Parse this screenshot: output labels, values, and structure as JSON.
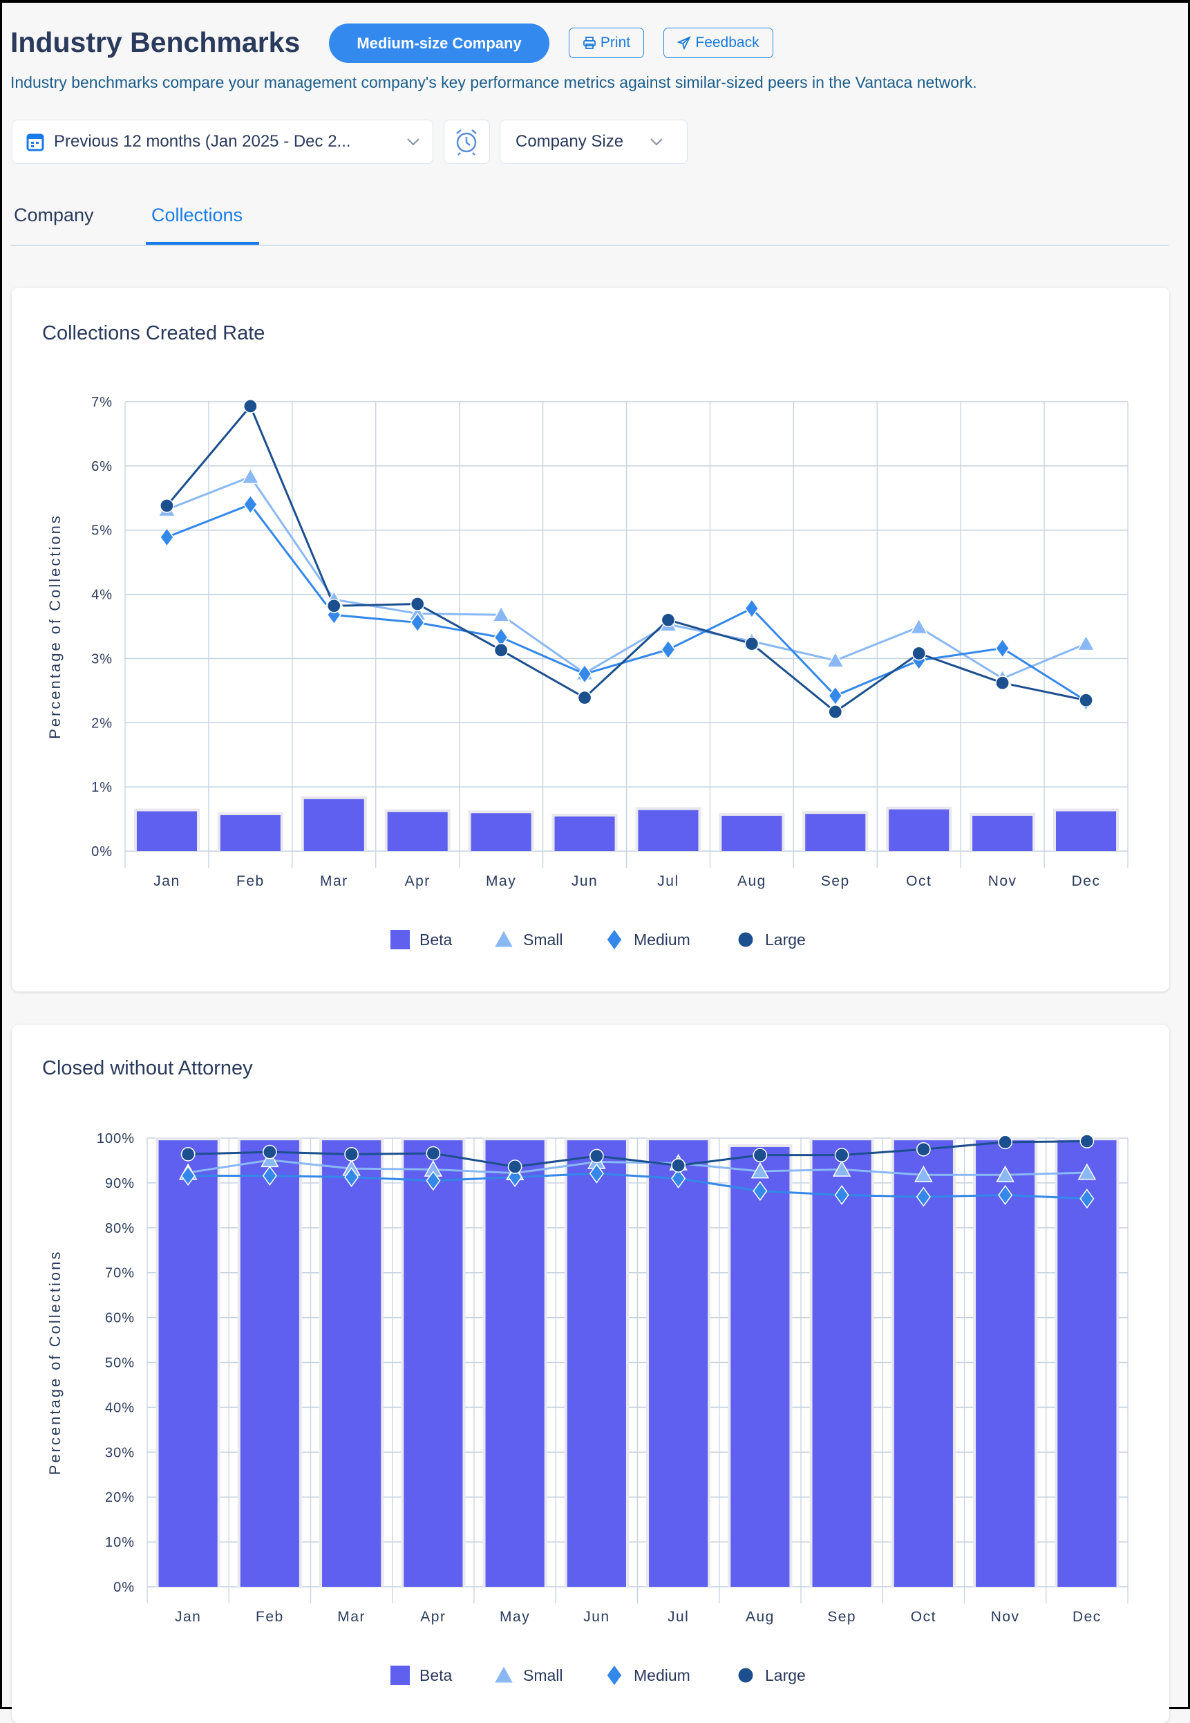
{
  "header": {
    "title": "Industry Benchmarks",
    "badge": "Medium-size Company",
    "print_label": "Print",
    "feedback_label": "Feedback",
    "subtitle": "Industry benchmarks compare your management company's key performance metrics against similar-sized peers in the Vantaca network."
  },
  "filters": {
    "date_range": "Previous 12 months (Jan 2025 - Dec 2...",
    "company_size": "Company Size"
  },
  "tabs": [
    {
      "label": "Company",
      "active": false
    },
    {
      "label": "Collections",
      "active": true
    }
  ],
  "colors": {
    "accent": "#3389ee",
    "beta": "#5f60ef",
    "small": "#8ab8f5",
    "medium": "#3388ea",
    "large": "#1c4f8e"
  },
  "chart_data": [
    {
      "type": "bar+line",
      "title": "Collections Created Rate",
      "ylabel": "Percentage of Collections",
      "ylim": [
        0,
        7
      ],
      "yticks": [
        "0%",
        "1%",
        "2%",
        "3%",
        "4%",
        "5%",
        "6%",
        "7%"
      ],
      "grid": true,
      "legend": "bottom",
      "categories": [
        "Jan",
        "Feb",
        "Mar",
        "Apr",
        "May",
        "Jun",
        "Jul",
        "Aug",
        "Sep",
        "Oct",
        "Nov",
        "Dec"
      ],
      "series": [
        {
          "name": "Beta",
          "kind": "bar",
          "values": [
            0.62,
            0.56,
            0.81,
            0.61,
            0.59,
            0.54,
            0.64,
            0.55,
            0.58,
            0.65,
            0.55,
            0.62
          ]
        },
        {
          "name": "Small",
          "kind": "line",
          "marker": "triangle",
          "values": [
            5.32,
            5.83,
            3.92,
            3.7,
            3.68,
            2.77,
            3.53,
            3.27,
            2.97,
            3.49,
            2.69,
            3.23
          ]
        },
        {
          "name": "Medium",
          "kind": "line",
          "marker": "diamond",
          "values": [
            4.89,
            5.4,
            3.68,
            3.56,
            3.33,
            2.76,
            3.14,
            3.78,
            2.42,
            2.97,
            3.16,
            2.34
          ]
        },
        {
          "name": "Large",
          "kind": "line",
          "marker": "circle",
          "values": [
            5.38,
            6.93,
            3.82,
            3.85,
            3.13,
            2.39,
            3.6,
            3.23,
            2.17,
            3.08,
            2.62,
            2.35
          ]
        }
      ]
    },
    {
      "type": "bar+line",
      "title": "Closed without Attorney",
      "ylabel": "Percentage of Collections",
      "ylim": [
        0,
        100
      ],
      "yticks": [
        "0%",
        "10%",
        "20%",
        "30%",
        "40%",
        "50%",
        "60%",
        "70%",
        "80%",
        "90%",
        "100%"
      ],
      "grid": true,
      "legend": "bottom",
      "categories": [
        "Jan",
        "Feb",
        "Mar",
        "Apr",
        "May",
        "Jun",
        "Jul",
        "Aug",
        "Sep",
        "Oct",
        "Nov",
        "Dec"
      ],
      "series": [
        {
          "name": "Beta",
          "kind": "bar",
          "values": [
            99.5,
            99.5,
            99.5,
            99.5,
            99.5,
            99.5,
            99.5,
            98.0,
            99.5,
            99.5,
            99.5,
            99.5
          ]
        },
        {
          "name": "Small",
          "kind": "line",
          "marker": "triangle",
          "values": [
            92.3,
            95.1,
            93.2,
            93.0,
            92.2,
            94.7,
            94.4,
            92.6,
            93.0,
            91.8,
            91.8,
            92.3
          ]
        },
        {
          "name": "Medium",
          "kind": "line",
          "marker": "diamond",
          "values": [
            91.6,
            91.6,
            91.3,
            90.5,
            91.3,
            92.1,
            91.0,
            88.2,
            87.3,
            86.9,
            87.3,
            86.5
          ]
        },
        {
          "name": "Large",
          "kind": "line",
          "marker": "circle",
          "values": [
            96.4,
            96.9,
            96.4,
            96.6,
            93.6,
            96.0,
            93.9,
            96.2,
            96.2,
            97.5,
            99.1,
            99.3
          ]
        }
      ]
    }
  ]
}
